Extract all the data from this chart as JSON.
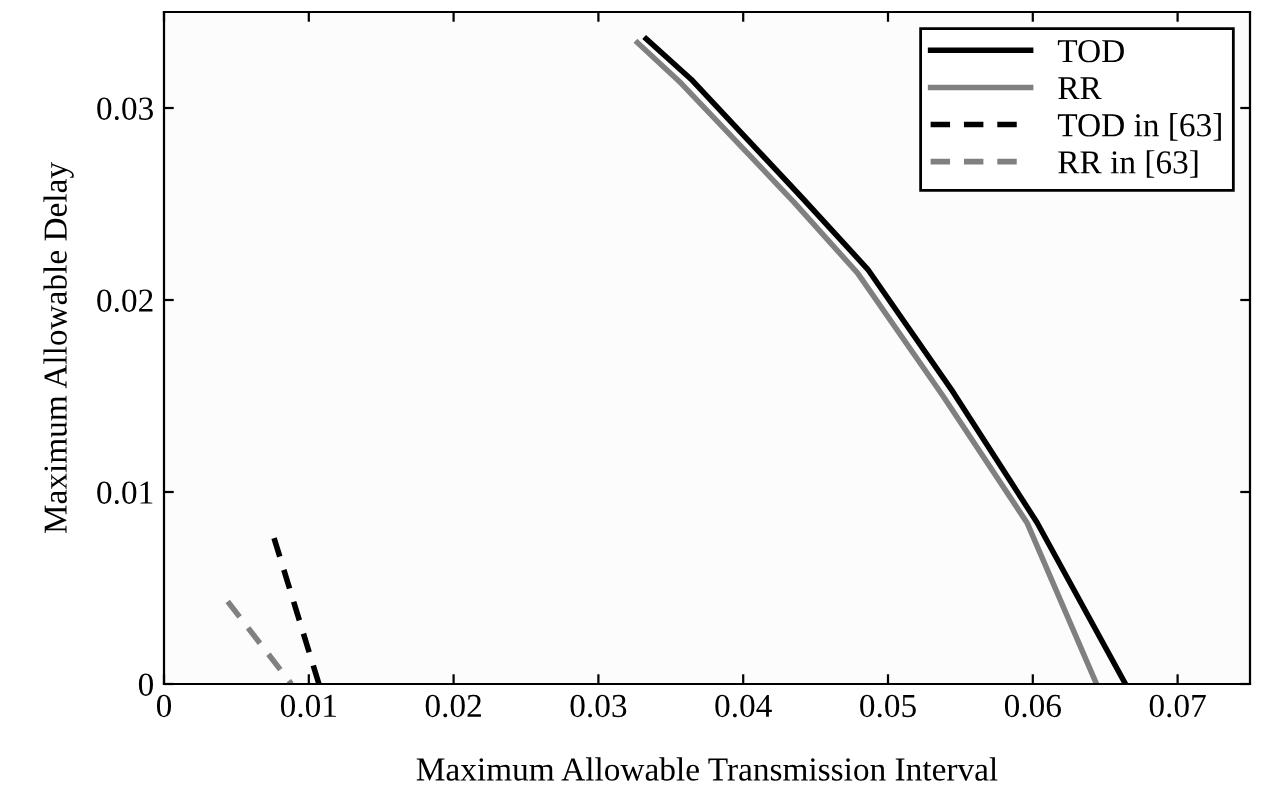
{
  "chart_data": {
    "type": "line",
    "xlabel": "Maximum Allowable Transmission Interval",
    "ylabel": "Maximum Allowable Delay",
    "xlim": [
      0,
      0.075
    ],
    "ylim": [
      0,
      0.035
    ],
    "xticks": [
      0,
      0.01,
      0.02,
      0.03,
      0.04,
      0.05,
      0.06,
      0.07
    ],
    "yticks": [
      0,
      0.01,
      0.02,
      0.03
    ],
    "grid": false,
    "legend": "top right",
    "marker": "none",
    "series": [
      {
        "name": "TOD",
        "color": "#000000",
        "line_style": "solid",
        "x": [
          0.0333,
          0.0364,
          0.0441,
          0.0486,
          0.0545,
          0.0603,
          0.0664
        ],
        "values": [
          0.0336,
          0.0315,
          0.0253,
          0.0216,
          0.0152,
          0.0084,
          0
        ]
      },
      {
        "name": "RR",
        "color": "#808080",
        "line_style": "solid",
        "x": [
          0.0327,
          0.0357,
          0.0435,
          0.0479,
          0.0538,
          0.0596,
          0.0644
        ],
        "values": [
          0.0334,
          0.0313,
          0.0251,
          0.0214,
          0.015,
          0.0084,
          0
        ]
      },
      {
        "name": "TOD in [63]",
        "color": "#000000",
        "line_style": "dashed",
        "x": [
          0.0076,
          0.0107
        ],
        "values": [
          0.0076,
          0
        ]
      },
      {
        "name": "RR in [63]",
        "color": "#808080",
        "line_style": "dashed",
        "x": [
          0.0044,
          0.0088
        ],
        "values": [
          0.0043,
          0
        ]
      }
    ]
  }
}
